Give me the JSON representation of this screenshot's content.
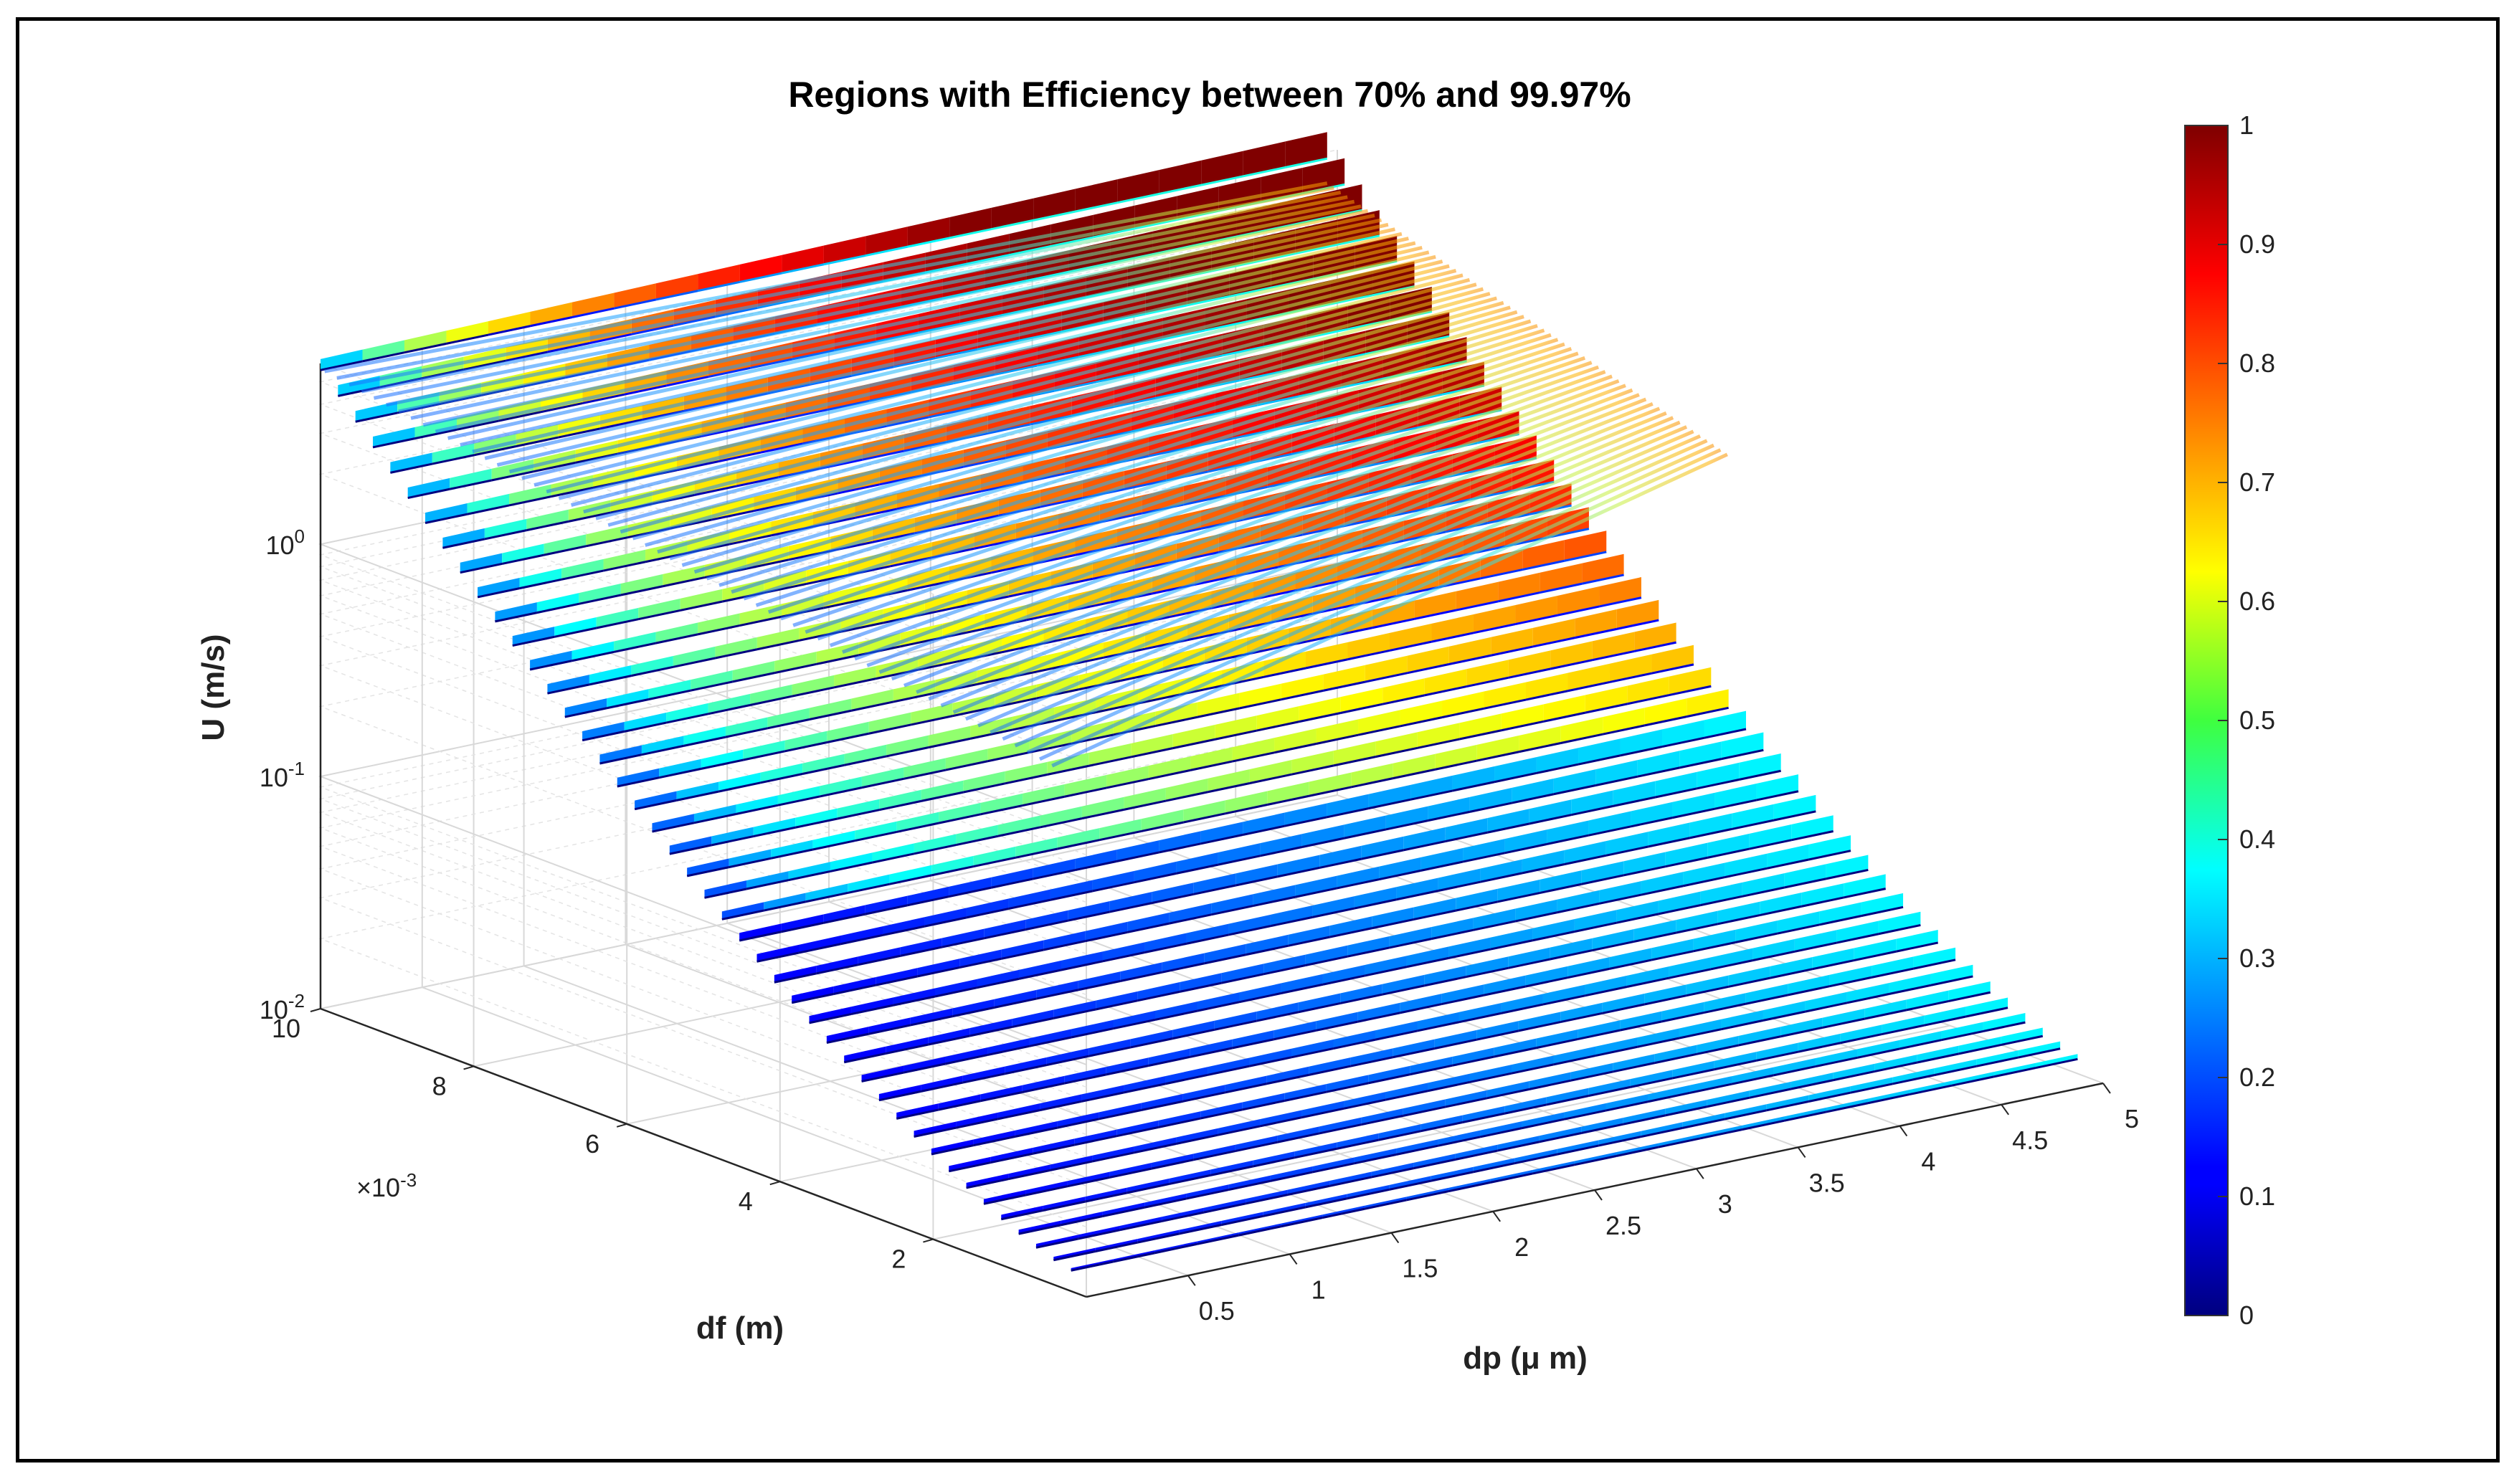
{
  "chart_data": {
    "type": "3d-scatter",
    "title": "Regions with Efficiency between 70% and 99.97%",
    "xlabel": "dp (μ m)",
    "ylabel": "df (m)",
    "zlabel": "U (m/s)",
    "x_ticks": [
      "0.5",
      "1",
      "1.5",
      "2",
      "2.5",
      "3",
      "3.5",
      "4",
      "4.5",
      "5"
    ],
    "x_range": [
      0,
      5
    ],
    "y_ticks": [
      "2",
      "4",
      "6",
      "8",
      "10"
    ],
    "y_range": [
      0,
      10
    ],
    "y_exponent_label": "×10",
    "y_exponent_power": "-3",
    "z_ticks": [
      {
        "base": "10",
        "exp": "-2",
        "value": 0.01
      },
      {
        "base": "10",
        "exp": "-1",
        "value": 0.1
      },
      {
        "base": "10",
        "exp": "0",
        "value": 1
      }
    ],
    "z_scale": "log",
    "z_range": [
      0.01,
      6
    ],
    "grid": true,
    "colorbar": {
      "ticks": [
        "0",
        "0.1",
        "0.2",
        "0.3",
        "0.4",
        "0.5",
        "0.6",
        "0.7",
        "0.8",
        "0.9",
        "1"
      ],
      "range": [
        0,
        1
      ],
      "colormap": "jet"
    },
    "series": {
      "description": "Efficiency-colored scatter layers over df, one layer per df value",
      "layer_count": 44,
      "df_range": [
        0.0002,
        0.01
      ],
      "dp_range": [
        0,
        5
      ]
    }
  }
}
